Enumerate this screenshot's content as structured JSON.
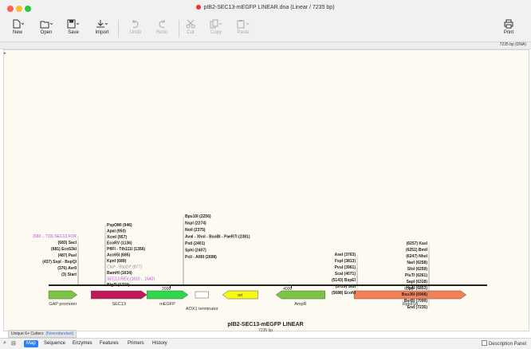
{
  "window": {
    "title": "pIB2-SEC13-mEGFP LINEAR.dna (Linear / 7235 bp)"
  },
  "toolbar": {
    "new": "New",
    "open": "Open",
    "save": "Save",
    "import": "Import",
    "undo": "Undo",
    "redo": "Redo",
    "cut": "Cut",
    "copy": "Copy",
    "paste": "Paste",
    "print": "Print"
  },
  "info": "7235 bp (DNA)",
  "map": {
    "title": "pIB2-SEC13-mEGFP LINEAR",
    "subtitle": "7235 bp",
    "ruler_ticks": [
      {
        "label": "2000",
        "pos": 2000
      },
      {
        "label": "4000",
        "pos": 4000
      },
      {
        "label": "6000",
        "pos": 6000
      }
    ],
    "features": [
      {
        "name": "GAP promoter",
        "start": 1,
        "end": 470,
        "color": "#7bc542",
        "dir": "right"
      },
      {
        "name": "SEC13",
        "start": 700,
        "end": 1620,
        "color": "#c2185b",
        "dir": "right"
      },
      {
        "name": "mEGFP",
        "start": 1620,
        "end": 2300,
        "color": "#2dd84a",
        "dir": "right"
      },
      {
        "name": "AOX1 terminator",
        "start": 2420,
        "end": 2640,
        "color": "#ffffff",
        "dir": "none"
      },
      {
        "name": "ori",
        "start": 2870,
        "end": 3450,
        "color": "#f7f711",
        "dir": "left"
      },
      {
        "name": "AmpR",
        "start": 3750,
        "end": 4560,
        "color": "#7bc542",
        "dir": "left"
      },
      {
        "name": "RpHIS4",
        "start": 5040,
        "end": 6890,
        "color": "#f58058",
        "dir": "right"
      }
    ],
    "sites_left": [
      "(683 .. 719)  SEC13.FOR",
      "(683)  SacI",
      "(681)  Eco53kI",
      "(487)  PasI",
      "(437)  SspI - BspQI",
      "(376)  AvrII",
      "(3)  Start"
    ],
    "sites_mid": [
      "PspOMI  (946)",
      "ApaI  (950)",
      "XcmI  (957)",
      "EcoRV  (1136)",
      "PflFI - Tth111I  (1356)",
      "Acc65I  (685)",
      "KpnI  (689)",
      "ClaI* - BspDI*  (877)",
      "BamHI  (1634)",
      "SEC13.REV  (1610 .. 1640)",
      "BlgZI  (1774)"
    ],
    "sites_center": [
      "Bpu10I  (2256)",
      "NspI  (2274)",
      "NotI  (2375)",
      "AvaI - XhoI - BsoBI - PaeR7I  (2381)",
      "PstI  (2401)",
      "SphI  (2407)",
      "PciI - AflIII  (2698)"
    ],
    "sites_right_mid": [
      "AseI  (3763)",
      "FspI  (3813)",
      "PvuI  (3961)",
      "ScaI  (4071)",
      "(5143)  BspEI",
      "(5729)  StuI",
      "(5688)  EcoNI"
    ],
    "sites_right": [
      "(6257)  KasI",
      "(6251)  BmtI",
      "(6247)  NheI",
      "NarI  (6258)",
      "SfoI  (6259)",
      "PluTI  (6261)",
      "SapI  (6318)",
      "HpaI  (6853)",
      "Bsu36I  (6908)",
      "BsrBI  (7099)",
      "End  (7235)"
    ]
  },
  "bottom": {
    "unique": "Unique 6+ Cutters",
    "nonredundant": "(Nonredundant)",
    "tabs": [
      "Map",
      "Sequence",
      "Enzymes",
      "Features",
      "Primers",
      "History"
    ],
    "active_tab": "Map",
    "description_panel": "Description Panel"
  }
}
